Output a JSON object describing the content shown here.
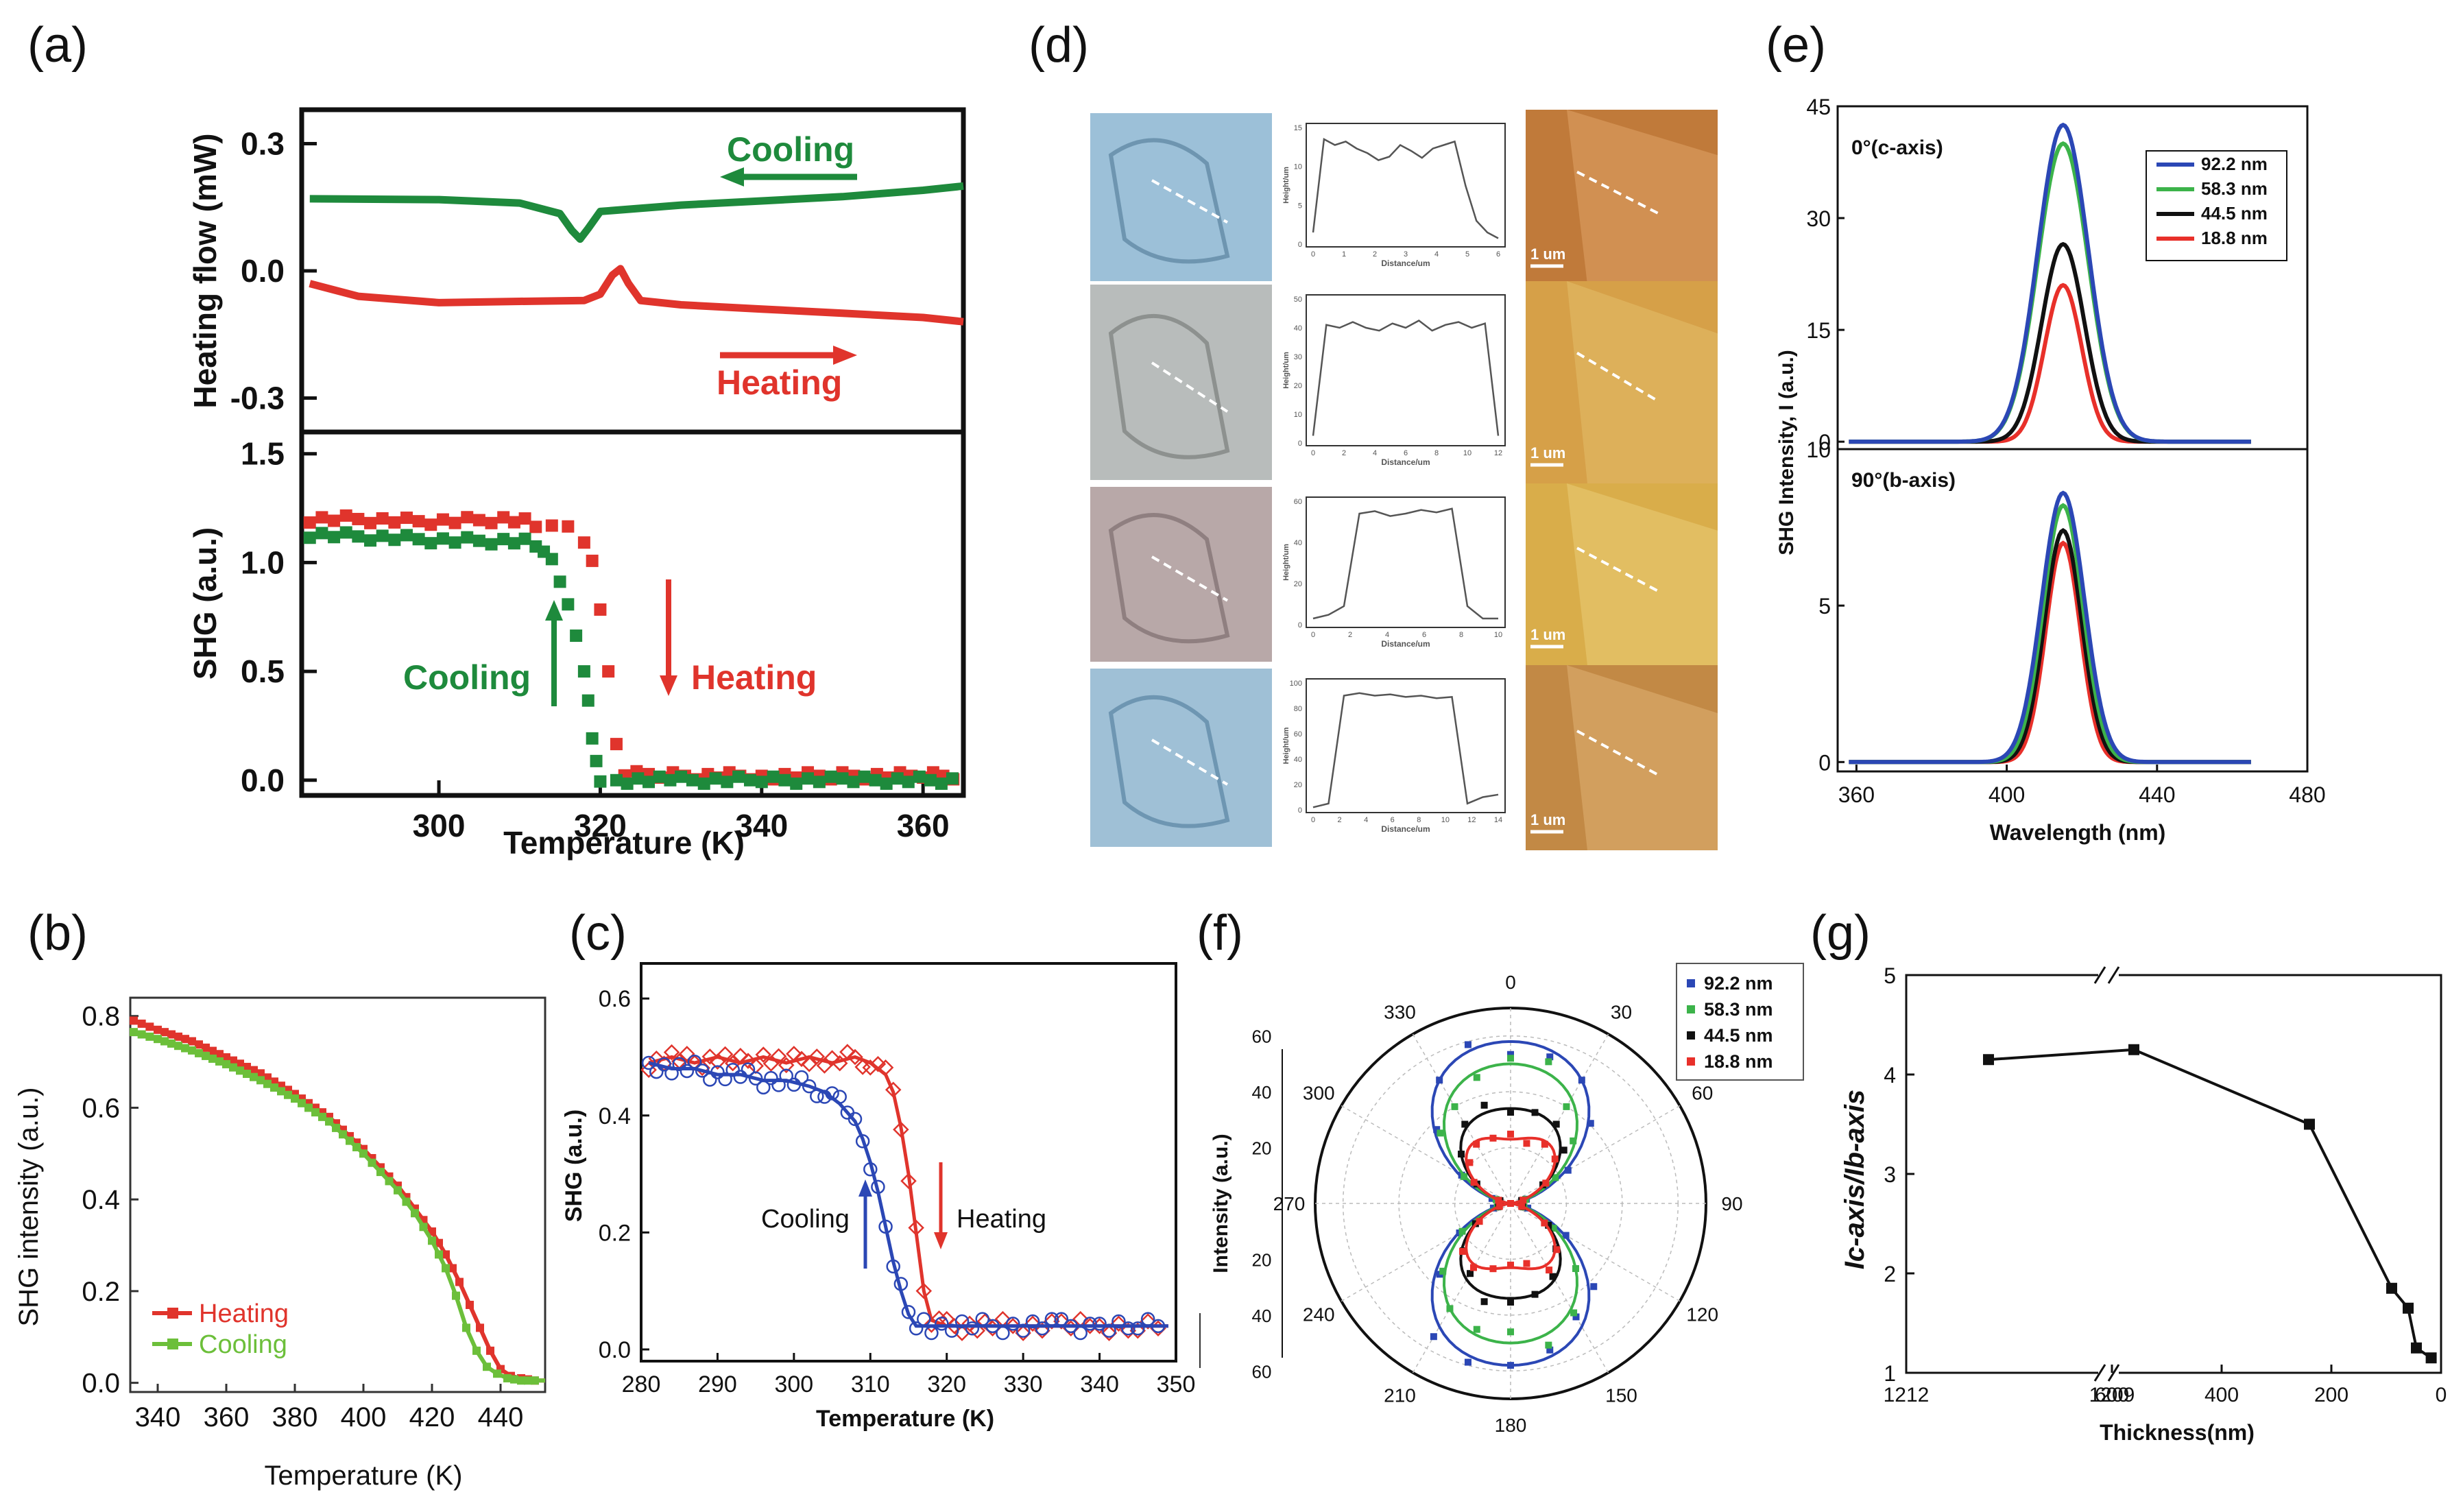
{
  "colors": {
    "green": "#1e8a3c",
    "red": "#e0342c",
    "lgreen": "#6cbf3a",
    "blue": "#2b47b5",
    "egreen": "#3cb34a",
    "black": "#111111",
    "ered": "#e8302a",
    "dash": "#ffffff"
  },
  "panel_labels": {
    "a": "(a)",
    "b": "(b)",
    "c": "(c)",
    "d": "(d)",
    "e": "(e)",
    "f": "(f)",
    "g": "(g)"
  },
  "chart_data": [
    {
      "id": "a_top",
      "type": "line",
      "ylabel": "Heating flow (mW)",
      "ylim": [
        -0.38,
        0.38
      ],
      "xlim": [
        283,
        365
      ],
      "yticks": [
        "0.3",
        "0.0",
        "-0.3"
      ],
      "annotations": {
        "cooling": "Cooling",
        "heating": "Heating"
      },
      "series": [
        {
          "name": "Cooling",
          "color": "#1e8a3c",
          "x": [
            284,
            300,
            310,
            315,
            316.5,
            317.5,
            318.5,
            320,
            330,
            340,
            350,
            360,
            365
          ],
          "y": [
            0.17,
            0.168,
            0.16,
            0.135,
            0.095,
            0.075,
            0.1,
            0.14,
            0.155,
            0.165,
            0.175,
            0.19,
            0.2
          ]
        },
        {
          "name": "Heating",
          "color": "#e0342c",
          "x": [
            284,
            290,
            300,
            310,
            318,
            320,
            321.5,
            322.5,
            323.5,
            325,
            330,
            340,
            350,
            360,
            365
          ],
          "y": [
            -0.03,
            -0.06,
            -0.075,
            -0.072,
            -0.07,
            -0.055,
            -0.01,
            0.005,
            -0.03,
            -0.07,
            -0.08,
            -0.09,
            -0.1,
            -0.11,
            -0.12
          ]
        }
      ]
    },
    {
      "id": "a_bottom",
      "type": "scatter",
      "ylabel": "SHG (a.u.)",
      "xlabel": "Temperature (K)",
      "ylim": [
        -0.07,
        1.6
      ],
      "xlim": [
        283,
        365
      ],
      "yticks": [
        "0.0",
        "0.5",
        "1.0",
        "1.5"
      ],
      "xticks": [
        "300",
        "320",
        "340",
        "360"
      ],
      "annotations": {
        "cooling": "Cooling",
        "heating": "Heating"
      },
      "series": [
        {
          "name": "Heating",
          "color": "#e0342c",
          "x": [
            284,
            290,
            296,
            302,
            308,
            312,
            314,
            316,
            318,
            319,
            320,
            321,
            322,
            323,
            326,
            332,
            340,
            350,
            360,
            365
          ],
          "y": [
            1.2,
            1.2,
            1.19,
            1.19,
            1.2,
            1.18,
            1.17,
            1.15,
            1.1,
            1.0,
            0.8,
            0.5,
            0.15,
            0.03,
            0.02,
            0.02,
            0.02,
            0.02,
            0.02,
            0.02
          ]
        },
        {
          "name": "Cooling",
          "color": "#1e8a3c",
          "x": [
            284,
            290,
            296,
            302,
            308,
            312,
            313,
            314,
            315,
            316,
            317,
            318,
            318.5,
            319,
            319.5,
            320,
            322,
            330,
            340,
            350,
            365
          ],
          "y": [
            1.13,
            1.12,
            1.11,
            1.1,
            1.1,
            1.09,
            1.05,
            1.0,
            0.92,
            0.8,
            0.68,
            0.5,
            0.35,
            0.2,
            0.08,
            0.01,
            0.0,
            0.0,
            0.0,
            0.0,
            0.0
          ]
        }
      ]
    },
    {
      "id": "b",
      "type": "line",
      "ylabel": "SHG intensity (a.u.)",
      "xlabel": "Temperature (K)",
      "ylim": [
        -0.02,
        0.84
      ],
      "xlim": [
        332,
        453
      ],
      "yticks": [
        "0.0",
        "0.2",
        "0.4",
        "0.6",
        "0.8"
      ],
      "xticks": [
        "340",
        "360",
        "380",
        "400",
        "420",
        "440"
      ],
      "legend": [
        "Heating",
        "Cooling"
      ],
      "series": [
        {
          "name": "Heating",
          "color": "#e0342c",
          "x": [
            333,
            340,
            350,
            360,
            370,
            380,
            390,
            400,
            405,
            410,
            415,
            420,
            424,
            428,
            431,
            434,
            437,
            440,
            443,
            446,
            450,
            453
          ],
          "y": [
            0.79,
            0.77,
            0.745,
            0.71,
            0.675,
            0.63,
            0.58,
            0.51,
            0.47,
            0.43,
            0.38,
            0.33,
            0.28,
            0.22,
            0.17,
            0.12,
            0.07,
            0.03,
            0.015,
            0.01,
            0.005,
            0.005
          ]
        },
        {
          "name": "Cooling",
          "color": "#6cbf3a",
          "x": [
            333,
            340,
            350,
            360,
            370,
            380,
            390,
            400,
            405,
            410,
            415,
            420,
            424,
            427,
            430,
            433,
            436,
            439,
            442,
            446,
            450,
            453
          ],
          "y": [
            0.765,
            0.75,
            0.725,
            0.695,
            0.66,
            0.62,
            0.57,
            0.5,
            0.46,
            0.42,
            0.37,
            0.31,
            0.25,
            0.19,
            0.12,
            0.07,
            0.035,
            0.02,
            0.01,
            0.005,
            0.005,
            0.005
          ]
        }
      ]
    },
    {
      "id": "c",
      "type": "scatter",
      "ylabel": "SHG (a.u.)",
      "xlabel": "Temperature (K)",
      "ylim": [
        -0.02,
        0.66
      ],
      "xlim": [
        280,
        350
      ],
      "yticks": [
        "0.0",
        "0.2",
        "0.4",
        "0.6"
      ],
      "xticks": [
        "280",
        "290",
        "300",
        "310",
        "320",
        "330",
        "340",
        "350"
      ],
      "annotations": {
        "cooling": "Cooling",
        "heating": "Heating"
      },
      "series": [
        {
          "name": "Heating",
          "color": "#e0342c",
          "x": [
            281,
            284,
            287,
            290,
            293,
            296,
            299,
            302,
            305,
            308,
            310,
            312,
            313,
            314,
            315,
            316,
            317,
            318,
            320,
            323,
            326,
            330,
            335,
            340,
            345,
            349
          ],
          "y": [
            0.49,
            0.5,
            0.49,
            0.5,
            0.49,
            0.5,
            0.49,
            0.5,
            0.49,
            0.5,
            0.49,
            0.47,
            0.44,
            0.38,
            0.3,
            0.2,
            0.1,
            0.05,
            0.04,
            0.04,
            0.04,
            0.04,
            0.04,
            0.04,
            0.04,
            0.04
          ]
        },
        {
          "name": "Cooling",
          "color": "#2b47b5",
          "x": [
            281,
            284,
            287,
            290,
            293,
            296,
            299,
            302,
            304,
            306,
            308,
            309,
            310,
            311,
            312,
            313,
            314,
            315,
            316,
            318,
            322,
            326,
            330,
            335,
            340,
            345,
            349
          ],
          "y": [
            0.49,
            0.48,
            0.48,
            0.47,
            0.47,
            0.46,
            0.46,
            0.45,
            0.44,
            0.42,
            0.39,
            0.36,
            0.32,
            0.27,
            0.21,
            0.15,
            0.1,
            0.06,
            0.04,
            0.04,
            0.04,
            0.04,
            0.04,
            0.04,
            0.04,
            0.04,
            0.04
          ]
        }
      ]
    },
    {
      "id": "e_top",
      "type": "line",
      "ylabel": "SHG Intensity, I (a.u.)",
      "title": "0°(c-axis)",
      "ylim": [
        -1,
        45
      ],
      "xlim": [
        355,
        480
      ],
      "yticks": [
        "0",
        "15",
        "30",
        "45"
      ],
      "series": [
        {
          "name": "92.2 nm",
          "color": "#2b47b5",
          "peak": 42.5,
          "center": 415,
          "width": 9.5
        },
        {
          "name": "58.3 nm",
          "color": "#3cb34a",
          "peak": 40,
          "center": 415,
          "width": 9.5
        },
        {
          "name": "44.5 nm",
          "color": "#111111",
          "peak": 26.5,
          "center": 415,
          "width": 8
        },
        {
          "name": "18.8 nm",
          "color": "#e8302a",
          "peak": 21,
          "center": 415,
          "width": 7
        }
      ]
    },
    {
      "id": "e_bottom",
      "type": "line",
      "xlabel": "Wavelength (nm)",
      "title": "90°(b-axis)",
      "ylim": [
        -0.3,
        10
      ],
      "xlim": [
        355,
        480
      ],
      "yticks": [
        "0",
        "5",
        "10"
      ],
      "xticks": [
        "360",
        "400",
        "440",
        "480"
      ],
      "series": [
        {
          "name": "92.2 nm",
          "color": "#2b47b5",
          "peak": 8.6,
          "center": 415,
          "width": 8
        },
        {
          "name": "58.3 nm",
          "color": "#3cb34a",
          "peak": 8.2,
          "center": 415,
          "width": 7.5
        },
        {
          "name": "44.5 nm",
          "color": "#111111",
          "peak": 7.4,
          "center": 415,
          "width": 7
        },
        {
          "name": "18.8 nm",
          "color": "#e8302a",
          "peak": 7.0,
          "center": 415,
          "width": 6.5
        }
      ]
    },
    {
      "id": "f",
      "type": "scatter",
      "polar": true,
      "ylabel": "Intensity (a.u.)",
      "rmax": 70,
      "rticks": [
        "20",
        "40",
        "60"
      ],
      "angle_labels": [
        "0",
        "30",
        "60",
        "90",
        "120",
        "150",
        "180",
        "210",
        "240",
        "270",
        "300",
        "330"
      ],
      "legend": [
        "92.2 nm",
        "58.3 nm",
        "44.5 nm",
        "18.8 nm"
      ],
      "series": [
        {
          "name": "92.2 nm",
          "color": "#2b47b5",
          "a": 58,
          "b": 10
        },
        {
          "name": "58.3 nm",
          "color": "#3cb34a",
          "a": 50,
          "b": 8
        },
        {
          "name": "44.5 nm",
          "color": "#111111",
          "a": 34,
          "b": 8
        },
        {
          "name": "18.8 nm",
          "color": "#e8302a",
          "a": 23,
          "b": 11
        }
      ]
    },
    {
      "id": "g",
      "type": "line",
      "ylabel": "Ic-axis/Ib-axis",
      "xlabel": "Thickness(nm)",
      "ylim": [
        1,
        5
      ],
      "yticks": [
        "1",
        "2",
        "3",
        "4",
        "5"
      ],
      "xticks": [
        "1212",
        "1209",
        "600",
        "400",
        "200",
        "0"
      ],
      "series": [
        {
          "name": "ratio",
          "color": "#111111",
          "x": [
            1210.8,
            560,
            240,
            90,
            60,
            45,
            18
          ],
          "y": [
            4.15,
            4.25,
            3.5,
            1.85,
            1.65,
            1.25,
            1.15
          ]
        }
      ]
    }
  ],
  "panel_d": {
    "rows": [
      {
        "scale": "1 um",
        "ylabel": "Height/um",
        "xlabel": "Distance/um",
        "yticks": [
          "0",
          "5",
          "10",
          "15"
        ],
        "xticks": [
          "0",
          "1",
          "2",
          "3",
          "4",
          "5",
          "6"
        ],
        "profile": [
          0.1,
          0.9,
          0.85,
          0.88,
          0.82,
          0.78,
          0.72,
          0.75,
          0.85,
          0.8,
          0.74,
          0.82,
          0.85,
          0.88,
          0.5,
          0.2,
          0.1,
          0.05
        ]
      },
      {
        "scale": "1 um",
        "ylabel": "Height/um",
        "xlabel": "Distance/um",
        "yticks": [
          "0",
          "10",
          "20",
          "30",
          "40",
          "50"
        ],
        "xticks": [
          "0",
          "2",
          "4",
          "6",
          "8",
          "10",
          "12"
        ],
        "profile": [
          0.05,
          0.82,
          0.8,
          0.84,
          0.8,
          0.78,
          0.83,
          0.8,
          0.85,
          0.78,
          0.82,
          0.84,
          0.8,
          0.83,
          0.05
        ]
      },
      {
        "scale": "1 um",
        "ylabel": "Height/um",
        "xlabel": "Distance/um",
        "yticks": [
          "0",
          "20",
          "40",
          "60"
        ],
        "xticks": [
          "0",
          "2",
          "4",
          "6",
          "8",
          "10"
        ],
        "profile": [
          0.05,
          0.08,
          0.15,
          0.9,
          0.92,
          0.88,
          0.9,
          0.93,
          0.91,
          0.94,
          0.15,
          0.05,
          0.05
        ]
      },
      {
        "scale": "1 um",
        "ylabel": "Height/um",
        "xlabel": "Distance/um",
        "yticks": [
          "0",
          "20",
          "40",
          "60",
          "80",
          "100"
        ],
        "xticks": [
          "0",
          "2",
          "4",
          "6",
          "8",
          "10",
          "12",
          "14"
        ],
        "profile": [
          0.02,
          0.05,
          0.9,
          0.92,
          0.9,
          0.91,
          0.89,
          0.9,
          0.88,
          0.89,
          0.05,
          0.1,
          0.12
        ]
      }
    ]
  }
}
